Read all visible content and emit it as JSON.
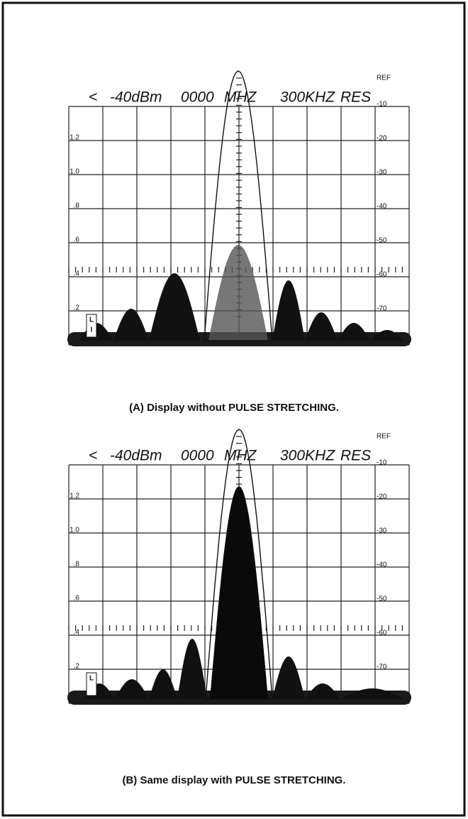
{
  "panels": [
    {
      "header": [
        "<",
        "-40dBm",
        "0000",
        "MHZ",
        "300KHZ",
        "RES"
      ],
      "ref": "REF",
      "right_scale": [
        "-10",
        "-20",
        "-30",
        "-40",
        "-50",
        "-60",
        "-70"
      ],
      "left_scale": [
        "1.2",
        "1.0",
        ".8",
        ".6",
        ".4",
        ".2"
      ],
      "marker": [
        "L",
        "I"
      ],
      "caption": "(A)  Display without PULSE STRETCHING."
    },
    {
      "header": [
        "<",
        "-40dBm",
        "0000",
        "MHZ",
        "300KHZ",
        "RES"
      ],
      "ref": "REF",
      "right_scale": [
        "-10",
        "-20",
        "-30",
        "-40",
        "-50",
        "-60",
        "-70"
      ],
      "left_scale": [
        "1.2",
        "1.0",
        ".8",
        ".6",
        ".4",
        ".2"
      ],
      "marker": [
        "L"
      ],
      "caption": "(B)  Same display with PULSE STRETCHING."
    }
  ]
}
